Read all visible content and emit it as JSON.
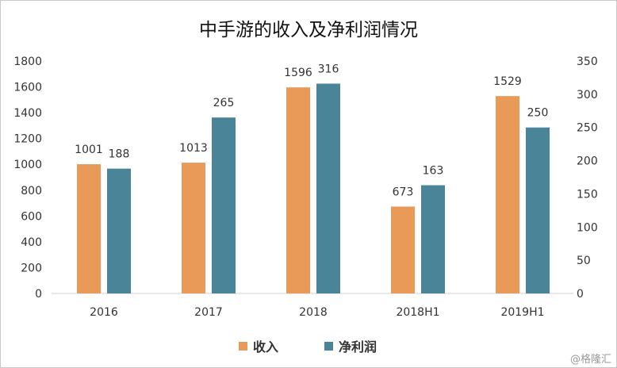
{
  "chart_data": {
    "type": "bar",
    "title": "中手游的收入及净利润情况",
    "categories": [
      "2016",
      "2017",
      "2018",
      "2018H1",
      "2019H1"
    ],
    "series": [
      {
        "name": "收入",
        "axis": "left",
        "color": "#E99A58",
        "values": [
          1001,
          1013,
          1596,
          673,
          1529
        ]
      },
      {
        "name": "净利润",
        "axis": "right",
        "color": "#4A8499",
        "values": [
          188,
          265,
          316,
          163,
          250
        ]
      }
    ],
    "ylim_left": [
      0,
      1800
    ],
    "yticks_left": [
      0,
      200,
      400,
      600,
      800,
      1000,
      1200,
      1400,
      1600,
      1800
    ],
    "ylim_right": [
      0,
      350
    ],
    "yticks_right": [
      0,
      50,
      100,
      150,
      200,
      250,
      300,
      350
    ],
    "grid": false,
    "legend_position": "bottom"
  },
  "watermark": "@格隆汇"
}
